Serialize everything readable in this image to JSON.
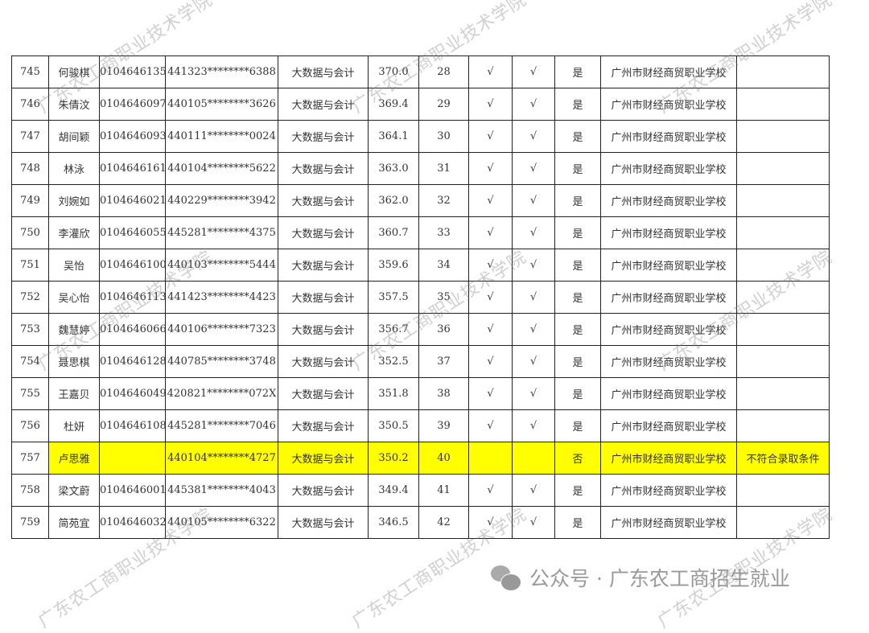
{
  "watermark": "广东农工商职业技术学院",
  "footer": {
    "text": "公众号 · 广东农工商招生就业",
    "icon": "wechat-icon"
  },
  "highlight_color": "#ffff00",
  "rows": [
    [
      "745",
      "何骏棋",
      "0104646135",
      "441323********6388",
      "大数据与会计",
      "370.0",
      "28",
      "√",
      "√",
      "是",
      "广州市财经商贸职业学校",
      ""
    ],
    [
      "746",
      "朱倩汶",
      "0104646097",
      "440105********3626",
      "大数据与会计",
      "369.4",
      "29",
      "√",
      "√",
      "是",
      "广州市财经商贸职业学校",
      ""
    ],
    [
      "747",
      "胡间颖",
      "0104646093",
      "440111********0024",
      "大数据与会计",
      "364.1",
      "30",
      "√",
      "√",
      "是",
      "广州市财经商贸职业学校",
      ""
    ],
    [
      "748",
      "林泳",
      "0104646161",
      "440104********5622",
      "大数据与会计",
      "363.0",
      "31",
      "√",
      "√",
      "是",
      "广州市财经商贸职业学校",
      ""
    ],
    [
      "749",
      "刘婉如",
      "0104646021",
      "440229********3942",
      "大数据与会计",
      "362.0",
      "32",
      "√",
      "√",
      "是",
      "广州市财经商贸职业学校",
      ""
    ],
    [
      "750",
      "李灌欣",
      "0104646055",
      "445281********4375",
      "大数据与会计",
      "360.7",
      "33",
      "√",
      "√",
      "是",
      "广州市财经商贸职业学校",
      ""
    ],
    [
      "751",
      "吴怡",
      "0104646100",
      "440103********5444",
      "大数据与会计",
      "359.6",
      "34",
      "√",
      "√",
      "是",
      "广州市财经商贸职业学校",
      ""
    ],
    [
      "752",
      "吴心怡",
      "0104646113",
      "441423********4423",
      "大数据与会计",
      "357.5",
      "35",
      "√",
      "√",
      "是",
      "广州市财经商贸职业学校",
      ""
    ],
    [
      "753",
      "魏慧婷",
      "0104646066",
      "440106********7323",
      "大数据与会计",
      "356.7",
      "36",
      "√",
      "√",
      "是",
      "广州市财经商贸职业学校",
      ""
    ],
    [
      "754",
      "聂思棋",
      "0104646128",
      "440785********3748",
      "大数据与会计",
      "352.5",
      "37",
      "√",
      "√",
      "是",
      "广州市财经商贸职业学校",
      ""
    ],
    [
      "755",
      "王嘉贝",
      "0104646049",
      "420821********072X",
      "大数据与会计",
      "351.8",
      "38",
      "√",
      "√",
      "是",
      "广州市财经商贸职业学校",
      ""
    ],
    [
      "756",
      "杜妍",
      "0104646108",
      "445281********7046",
      "大数据与会计",
      "350.5",
      "39",
      "√",
      "√",
      "是",
      "广州市财经商贸职业学校",
      ""
    ],
    [
      "757",
      "卢思雅",
      "",
      "440104********4727",
      "大数据与会计",
      "350.2",
      "40",
      "",
      "",
      "否",
      "广州市财经商贸职业学校",
      "不符合录取条件"
    ],
    [
      "758",
      "梁文蔚",
      "0104646001",
      "445381********4043",
      "大数据与会计",
      "349.4",
      "41",
      "√",
      "√",
      "是",
      "广州市财经商贸职业学校",
      ""
    ],
    [
      "759",
      "简苑宜",
      "0104646032",
      "440105********6322",
      "大数据与会计",
      "346.5",
      "42",
      "√",
      "√",
      "是",
      "广州市财经商贸职业学校",
      ""
    ]
  ],
  "highlighted_row": "757"
}
